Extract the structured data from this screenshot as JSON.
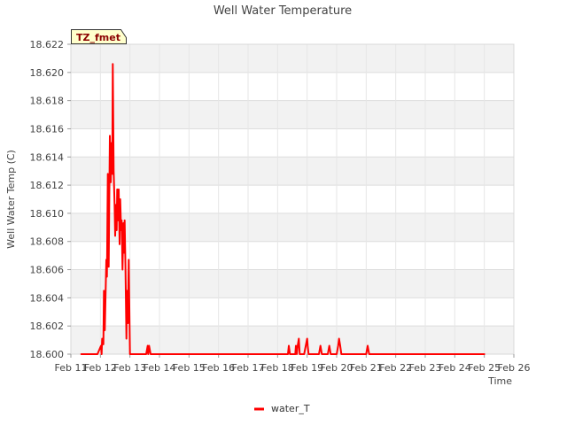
{
  "chart_data": {
    "type": "line",
    "title": "Well Water Temperature",
    "xlabel": "Time",
    "ylabel": "Well Water Temp (C)",
    "ylim": [
      18.6,
      18.622
    ],
    "xlim": [
      11,
      26
    ],
    "yticks": [
      18.6,
      18.602,
      18.604,
      18.606,
      18.608,
      18.61,
      18.612,
      18.614,
      18.616,
      18.618,
      18.62,
      18.622
    ],
    "ytick_labels": [
      "18.600",
      "18.602",
      "18.604",
      "18.606",
      "18.608",
      "18.610",
      "18.612",
      "18.614",
      "18.616",
      "18.618",
      "18.620",
      "18.622"
    ],
    "xticks": [
      11,
      12,
      13,
      14,
      15,
      16,
      17,
      18,
      19,
      20,
      21,
      22,
      23,
      24,
      25,
      26
    ],
    "xtick_labels": [
      "Feb 11",
      "Feb 12",
      "Feb 13",
      "Feb 14",
      "Feb 15",
      "Feb 16",
      "Feb 17",
      "Feb 18",
      "Feb 19",
      "Feb 20",
      "Feb 21",
      "Feb 22",
      "Feb 23",
      "Feb 24",
      "Feb 25",
      "Feb 26"
    ],
    "grid": true,
    "legend_position": "bottom-center",
    "series": [
      {
        "name": "water_T",
        "color": "#ff0000",
        "x": [
          11.35,
          11.9,
          12.02,
          12.04,
          12.06,
          12.1,
          12.12,
          12.15,
          12.2,
          12.22,
          12.25,
          12.28,
          12.3,
          12.32,
          12.35,
          12.38,
          12.4,
          12.42,
          12.45,
          12.48,
          12.5,
          12.52,
          12.55,
          12.57,
          12.6,
          12.62,
          12.65,
          12.67,
          12.7,
          12.72,
          12.75,
          12.78,
          12.8,
          12.82,
          12.85,
          12.88,
          12.9,
          12.93,
          12.96,
          13.0,
          13.03,
          13.06,
          13.1,
          13.2,
          13.35,
          13.55,
          13.6,
          13.62,
          13.65,
          13.7,
          13.75,
          18.35,
          18.38,
          18.42,
          18.5,
          18.6,
          18.62,
          18.65,
          18.68,
          18.72,
          18.75,
          18.9,
          19.0,
          19.02,
          19.05,
          19.08,
          19.12,
          19.4,
          19.45,
          19.5,
          19.7,
          19.75,
          19.8,
          20.0,
          20.05,
          20.08,
          20.12,
          20.16,
          21.0,
          21.05,
          21.1,
          25.0
        ],
        "y": [
          18.6,
          18.6,
          18.6006,
          18.6,
          18.6011,
          18.6007,
          18.6045,
          18.6017,
          18.6067,
          18.6055,
          18.6128,
          18.6062,
          18.6105,
          18.6155,
          18.6122,
          18.615,
          18.6128,
          18.6206,
          18.613,
          18.6107,
          18.6084,
          18.6106,
          18.6088,
          18.6117,
          18.6095,
          18.6117,
          18.6078,
          18.611,
          18.6088,
          18.6095,
          18.606,
          18.6093,
          18.6072,
          18.6095,
          18.6058,
          18.6011,
          18.6045,
          18.6022,
          18.6067,
          18.6,
          18.6,
          18.6,
          18.6,
          18.6,
          18.6,
          18.6,
          18.6006,
          18.6,
          18.6006,
          18.6,
          18.6,
          18.6,
          18.6006,
          18.6,
          18.6,
          18.6,
          18.6006,
          18.6,
          18.6006,
          18.6011,
          18.6,
          18.6,
          18.6011,
          18.6006,
          18.6,
          18.6,
          18.6,
          18.6,
          18.6006,
          18.6,
          18.6,
          18.6006,
          18.6,
          18.6,
          18.6006,
          18.6011,
          18.6006,
          18.6,
          18.6,
          18.6006,
          18.6,
          18.6
        ]
      }
    ]
  },
  "badge": {
    "label": "TZ_fmet"
  },
  "legend": {
    "label": "water_T"
  }
}
